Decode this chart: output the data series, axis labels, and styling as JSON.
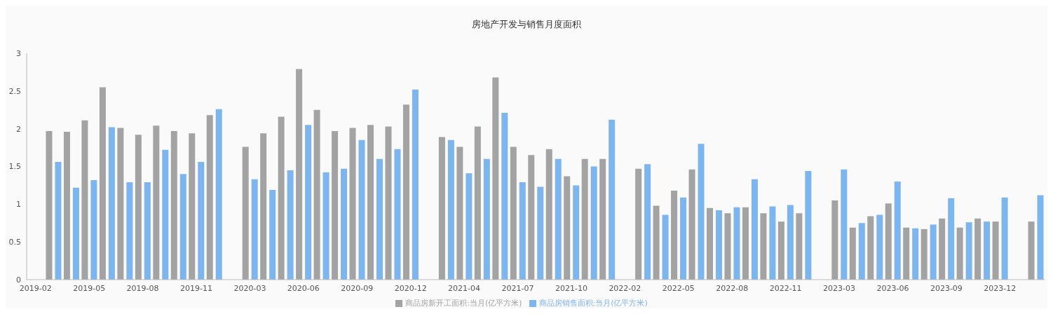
{
  "chart_data": {
    "type": "bar",
    "title": "房地产开发与销售月度面积",
    "categories": [
      "2019-02",
      null,
      null,
      "2019-05",
      null,
      null,
      "2019-08",
      null,
      null,
      "2019-11",
      null,
      null,
      "2020-03",
      null,
      null,
      "2020-06",
      null,
      null,
      "2020-09",
      null,
      null,
      "2020-12",
      null,
      null,
      "2021-04",
      null,
      null,
      "2021-07",
      null,
      null,
      "2021-10",
      null,
      null,
      "2022-02",
      null,
      null,
      "2022-05",
      null,
      null,
      "2022-08",
      null,
      null,
      "2022-11",
      null,
      null,
      "2023-03",
      null,
      null,
      "2023-06",
      null,
      null,
      "2023-09",
      null,
      null,
      "2023-12",
      null,
      null
    ],
    "series": [
      {
        "name": "商品房新开工面积:当月(亿平方米)",
        "color": "#a3a3a3",
        "values": [
          null,
          1.97,
          1.96,
          2.11,
          2.55,
          2.01,
          1.92,
          2.04,
          1.97,
          1.94,
          2.18,
          null,
          1.76,
          1.94,
          2.16,
          2.79,
          2.25,
          1.97,
          2.01,
          2.05,
          2.03,
          2.32,
          null,
          1.89,
          1.76,
          2.03,
          2.68,
          1.76,
          1.65,
          1.73,
          1.37,
          1.6,
          1.6,
          null,
          1.47,
          0.98,
          1.18,
          1.46,
          0.95,
          0.88,
          0.96,
          0.88,
          0.77,
          0.88,
          null,
          1.05,
          0.69,
          0.84,
          1.01,
          0.69,
          0.67,
          0.81,
          0.69,
          0.81,
          0.77,
          null,
          0.77
        ]
      },
      {
        "name": "商品房销售面积:当月(亿平方米)",
        "color": "#7db5ee",
        "values": [
          null,
          1.56,
          1.22,
          1.32,
          2.02,
          1.29,
          1.29,
          1.72,
          1.4,
          1.56,
          2.26,
          null,
          1.33,
          1.19,
          1.45,
          2.05,
          1.42,
          1.47,
          1.85,
          1.6,
          1.73,
          2.52,
          null,
          1.85,
          1.41,
          1.6,
          2.21,
          1.29,
          1.23,
          1.6,
          1.25,
          1.5,
          2.12,
          null,
          1.53,
          0.86,
          1.09,
          1.8,
          0.92,
          0.96,
          1.33,
          0.97,
          0.99,
          1.44,
          null,
          1.46,
          0.75,
          0.86,
          1.3,
          0.68,
          0.73,
          1.08,
          0.76,
          0.77,
          1.09,
          null,
          1.12
        ]
      }
    ],
    "ylim": [
      0,
      3
    ],
    "yticks": [
      0,
      0.5,
      1,
      1.5,
      2,
      2.5,
      3
    ],
    "grid": false,
    "legend": "bottom"
  }
}
